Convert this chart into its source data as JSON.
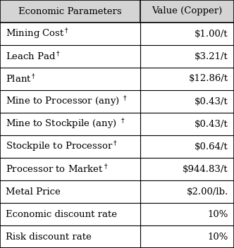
{
  "header": [
    "Economic Parameters",
    "Value (Copper)"
  ],
  "rows": [
    [
      "Mining Cost",
      "$1.00/t",
      true
    ],
    [
      "Leach Pad",
      "$3.21/t",
      true
    ],
    [
      "Plant",
      "$12.86/t",
      true
    ],
    [
      "Mine to Processor (any) ",
      "$0.43/t",
      true
    ],
    [
      "Mine to Stockpile (any) ",
      "$0.43/t",
      true
    ],
    [
      "Stockpile to Processor",
      "$0.64/t",
      true
    ],
    [
      "Processor to Market",
      "$944.83/t",
      true
    ],
    [
      "Metal Price",
      "$2.00/lb.",
      false
    ],
    [
      "Economic discount rate",
      "10%",
      false
    ],
    [
      "Risk discount rate",
      "10%",
      false
    ]
  ],
  "bg_color": "#ffffff",
  "header_bg": "#d4d4d4",
  "line_color": "#888888",
  "text_color": "#000000",
  "font_size": 9.5,
  "header_font_size": 9.5,
  "col_split": 0.6,
  "figsize": [
    3.32,
    3.52
  ],
  "dpi": 100
}
